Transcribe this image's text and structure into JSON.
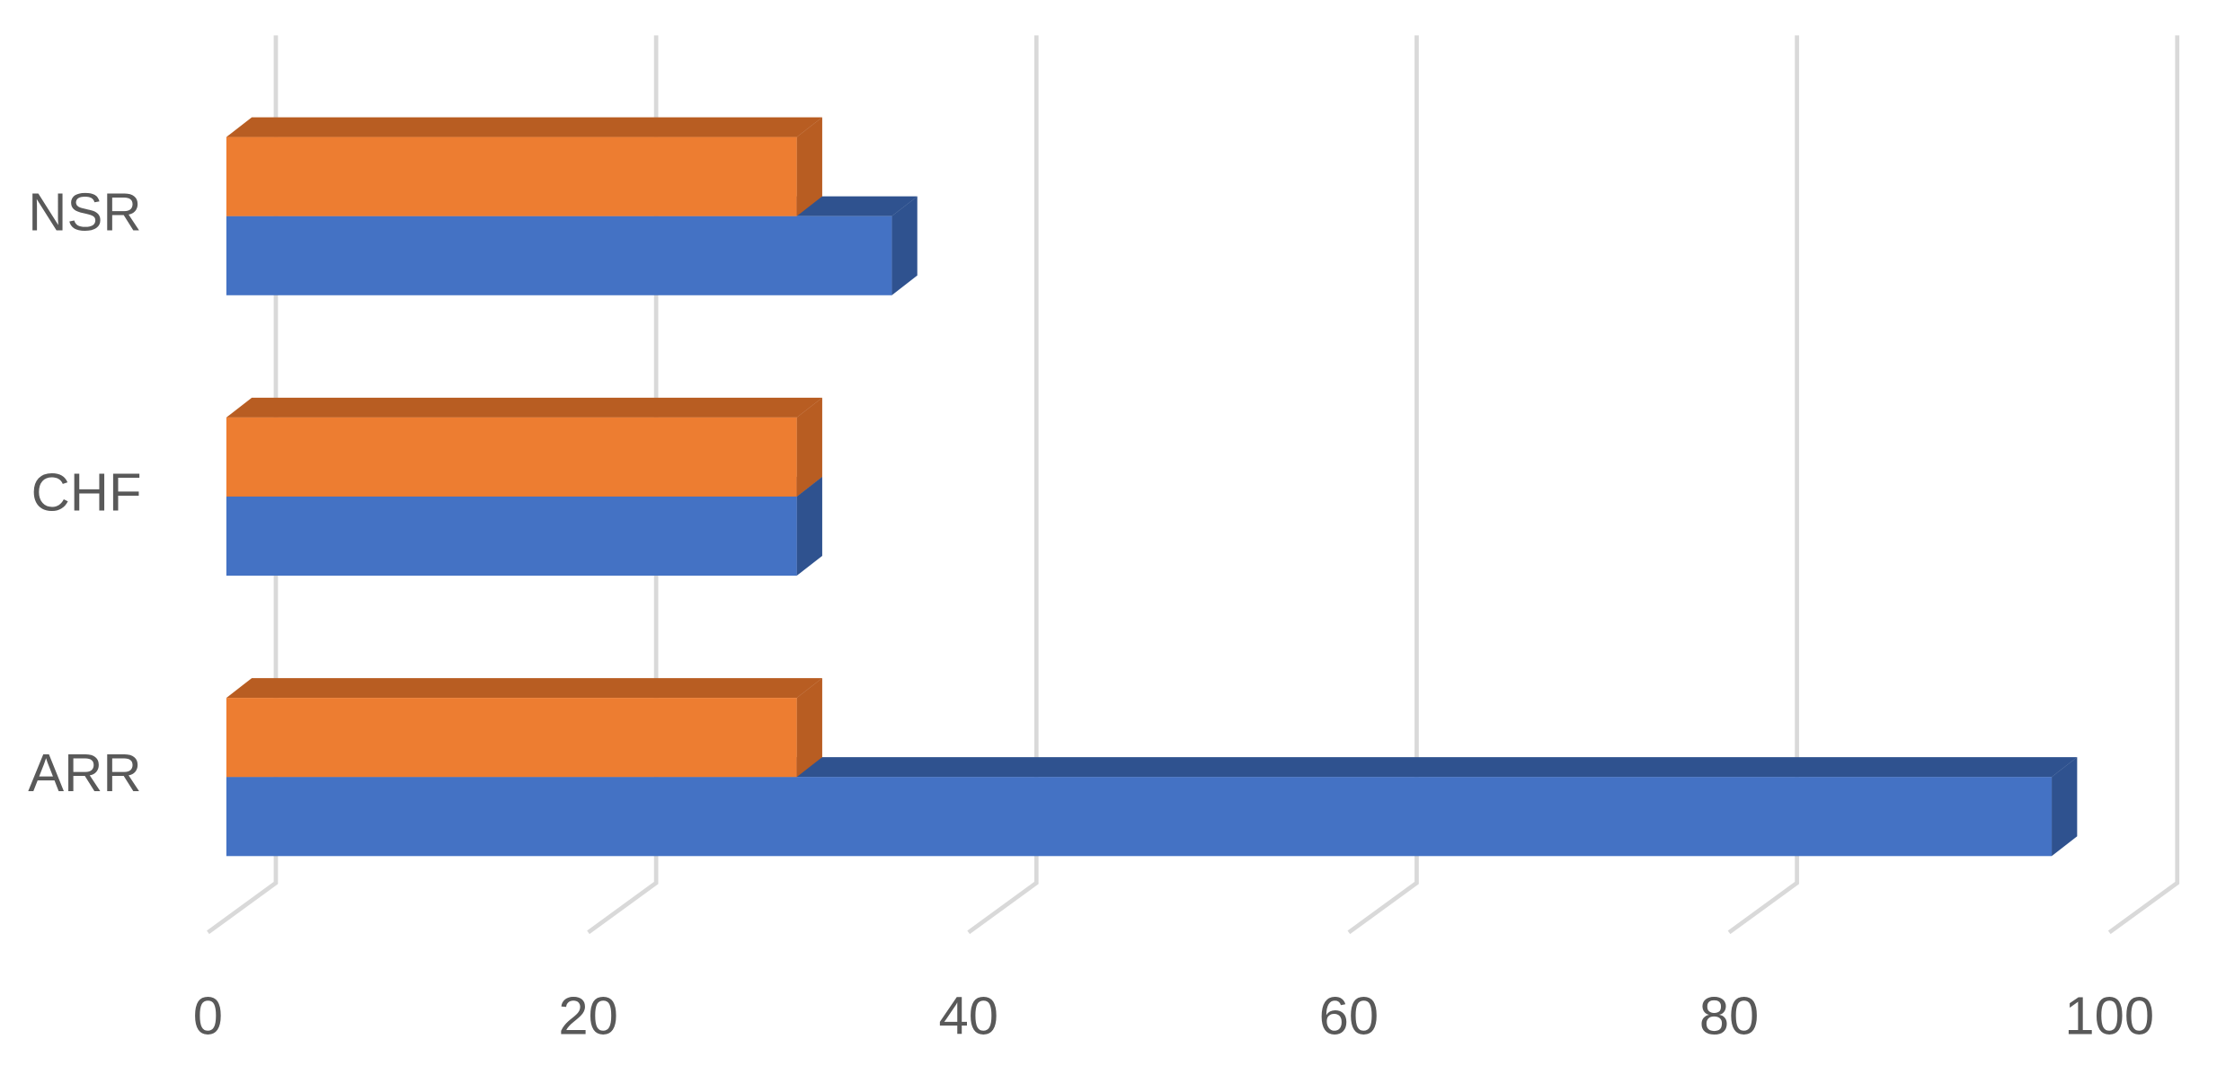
{
  "chart_data": {
    "type": "bar3d_horizontal",
    "categories": [
      "ARR",
      "CHF",
      "NSR"
    ],
    "series": [
      {
        "color": "#4472c4",
        "side_color": "#2f528f",
        "values": [
          96,
          30,
          35
        ]
      },
      {
        "color": "#ed7d31",
        "side_color": "#b85d22",
        "values": [
          30,
          30,
          30
        ]
      }
    ],
    "xlim": [
      0,
      100
    ],
    "xticks": [
      0,
      20,
      40,
      60,
      80,
      100
    ],
    "grid": true
  }
}
